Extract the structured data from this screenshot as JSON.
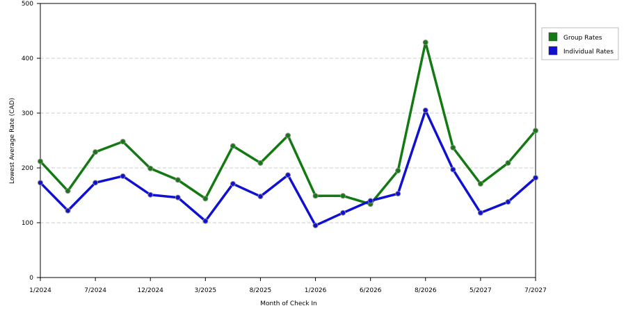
{
  "chart_data": {
    "type": "line",
    "x_label": "Month of Check In",
    "y_label": "Lowest Average Rate (CAD)",
    "categories": [
      "1/2024",
      null,
      "7/2024",
      null,
      "12/2024",
      null,
      "3/2025",
      null,
      "8/2025",
      null,
      "1/2026",
      null,
      "6/2026",
      null,
      "8/2026",
      null,
      "5/2027",
      null,
      "7/2027"
    ],
    "series": [
      {
        "name": "Group Rates",
        "color": "#137a13",
        "values": [
          212,
          158,
          229,
          248,
          199,
          178,
          144,
          240,
          209,
          259,
          149,
          149,
          134,
          195,
          429,
          237,
          171,
          209,
          268
        ]
      },
      {
        "name": "Individual Rates",
        "color": "#1010d0",
        "values": [
          173,
          122,
          173,
          185,
          151,
          146,
          103,
          171,
          148,
          187,
          95,
          118,
          140,
          153,
          305,
          197,
          118,
          138,
          182
        ]
      }
    ],
    "ylim": [
      0,
      500
    ],
    "yticks": [
      0,
      100,
      200,
      300,
      400,
      500
    ],
    "grid": true,
    "legend": "right"
  }
}
